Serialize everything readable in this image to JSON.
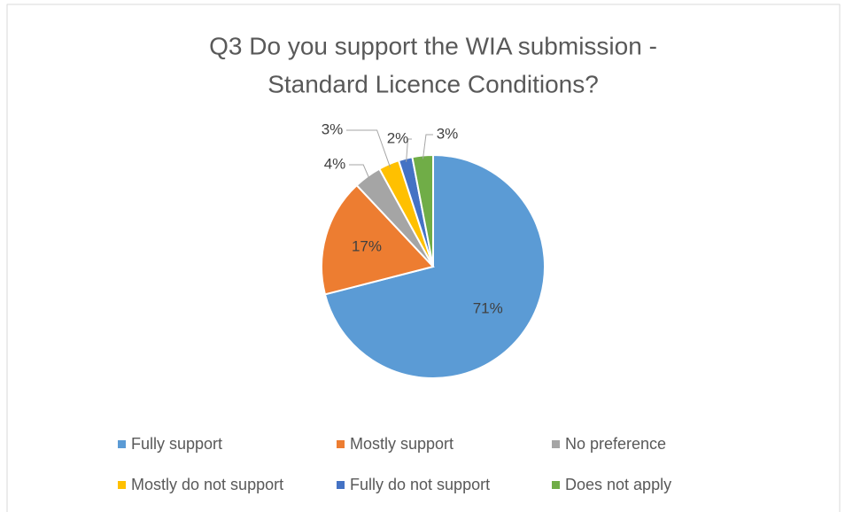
{
  "chart_data": {
    "type": "pie",
    "title": [
      "Q3 Do you support the WIA submission -",
      "Standard Licence Conditions?"
    ],
    "categories": [
      "Fully support",
      "Mostly support",
      "No preference",
      "Mostly do not support",
      "Fully do not support",
      "Does not apply"
    ],
    "values": [
      71,
      17,
      4,
      3,
      2,
      3
    ],
    "value_labels": [
      "71%",
      "17%",
      "4%",
      "3%",
      "2%",
      "3%"
    ],
    "colors": [
      "#5b9bd5",
      "#ed7d31",
      "#a5a5a5",
      "#ffc000",
      "#4472c4",
      "#70ad47"
    ],
    "legend": "bottom"
  }
}
